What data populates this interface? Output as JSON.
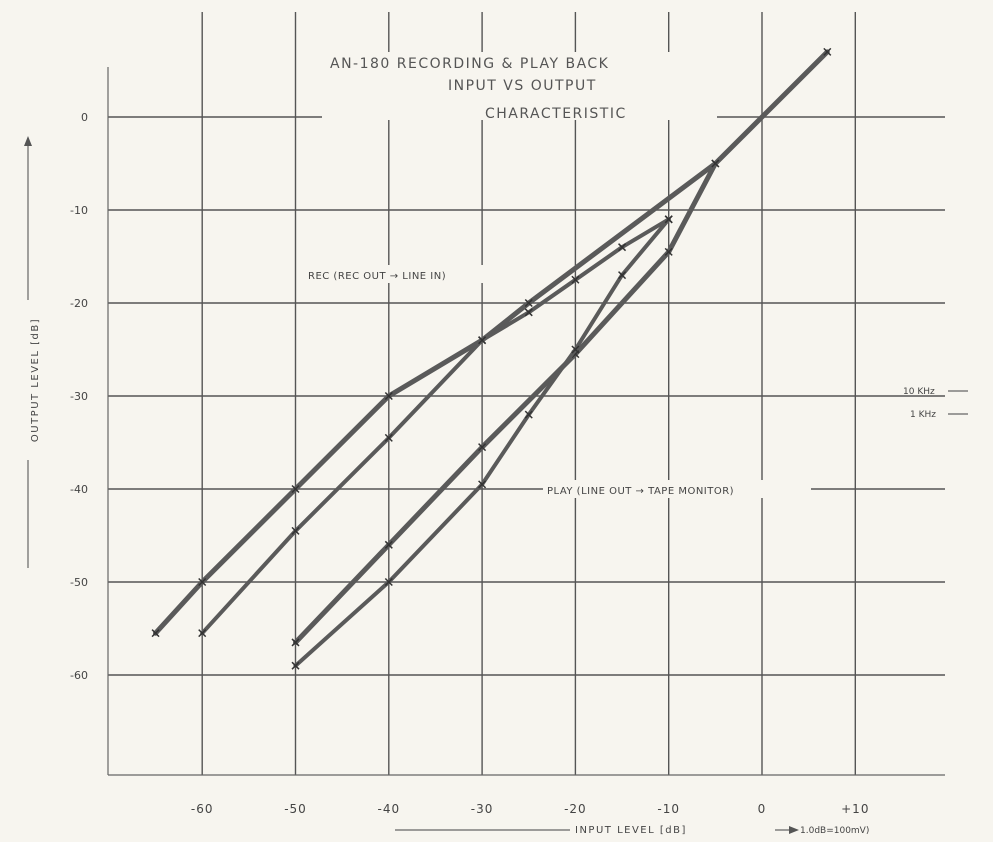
{
  "chart_data": {
    "type": "line",
    "title": "AN-180    RECORDING & PLAY BACK",
    "subtitle": [
      "INPUT VS OUTPUT",
      "CHARACTERISTIC"
    ],
    "xlabel": "INPUT LEVEL [dB]",
    "xlabel_note": "1.0dB=100mV)",
    "ylabel": "OUTPUT LEVEL [dB]",
    "xlim": [
      -70,
      10
    ],
    "ylim": [
      -70,
      10
    ],
    "x_ticks": [
      -60,
      -50,
      -40,
      -30,
      -20,
      -10,
      0,
      10
    ],
    "x_tick_labels": [
      "-60",
      "-50",
      "-40",
      "-30",
      "-20",
      "-10",
      "0",
      "+10"
    ],
    "y_ticks": [
      0,
      -10,
      -20,
      -30,
      -40,
      -50,
      -60
    ],
    "y_tick_labels": [
      "0",
      "-10",
      "-20",
      "-30",
      "-40",
      "-50",
      "-60"
    ],
    "grid": true,
    "annotations": [
      {
        "text": "REC (REC OUT → LINE IN)",
        "x": -50,
        "y": -18.5
      },
      {
        "text": "PLAY (LINE OUT → TAPE MONITOR)",
        "x": -25,
        "y": -40.5
      }
    ],
    "legend": {
      "placement": "right",
      "entries": [
        "10 KHz",
        "1 KHz"
      ]
    },
    "series": [
      {
        "name": "REC 10 KHz",
        "x": [
          -65,
          -60,
          -50,
          -40,
          -30,
          -25,
          -5,
          7
        ],
        "y": [
          -55.5,
          -50,
          -40,
          -30,
          -24,
          -20,
          -5,
          7
        ]
      },
      {
        "name": "REC 1 KHz",
        "x": [
          -60,
          -50,
          -40,
          -30,
          -25,
          -20,
          -15,
          -10
        ],
        "y": [
          -55.5,
          -44.5,
          -34.5,
          -24,
          -21,
          -17.5,
          -14,
          -11
        ]
      },
      {
        "name": "PLAY 10 KHz",
        "x": [
          -50,
          -40,
          -30,
          -20,
          -10,
          -5
        ],
        "y": [
          -56.5,
          -46,
          -35.5,
          -25.5,
          -14.5,
          -5
        ]
      },
      {
        "name": "PLAY 1 KHz",
        "x": [
          -50,
          -40,
          -30,
          -25,
          -20,
          -15,
          -10
        ],
        "y": [
          -59,
          -50,
          -39.5,
          -32,
          -25,
          -17,
          -11
        ]
      }
    ]
  }
}
